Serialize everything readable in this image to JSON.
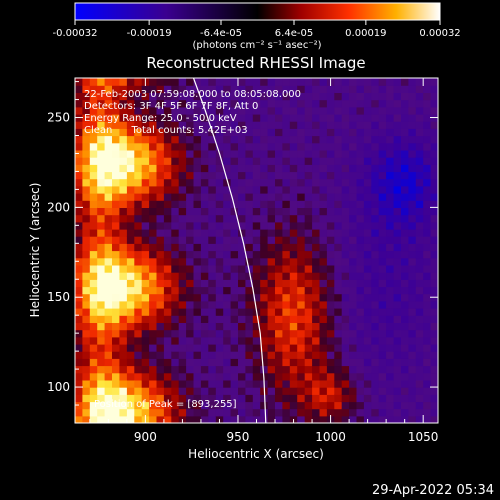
{
  "chart_data": {
    "type": "heatmap",
    "title": "Reconstructed RHESSI Image",
    "xlabel": "Heliocentric X (arcsec)",
    "ylabel": "Heliocentric Y (arcsec)",
    "xlim": [
      862,
      1058
    ],
    "ylim": [
      80,
      272
    ],
    "x_ticks": [
      900,
      950,
      1000,
      1050
    ],
    "y_ticks": [
      100,
      150,
      200,
      250
    ],
    "colorbar": {
      "min": -0.00032,
      "max": 0.00032,
      "tick_values": [
        -0.00032,
        -0.00019,
        -6.4e-05,
        6.4e-05,
        0.00019,
        0.00032
      ],
      "tick_labels": [
        "-0.00032",
        "-0.00019",
        "-6.4e-05",
        "6.4e-05",
        "0.00019",
        "0.00032"
      ],
      "unit_label": "(photons cm⁻² s⁻¹ asec⁻²)"
    },
    "annotations": [
      "22-Feb-2003 07:59:08.000 to 08:05:08.000",
      "Detectors: 3F 4F 5F 6F 7F 8F, Att 0",
      "Energy Range: 25.0 - 50.0 keV",
      "Clean      Total counts: 5.42E+03"
    ],
    "peak_label": "Position of Peak = [893,255]",
    "limb": [
      [
        926,
        272
      ],
      [
        932,
        255
      ],
      [
        940,
        230
      ],
      [
        947,
        205
      ],
      [
        953,
        180
      ],
      [
        958,
        155
      ],
      [
        962,
        130
      ],
      [
        964,
        105
      ],
      [
        965,
        80
      ]
    ]
  },
  "footer": {
    "timestamp": "29-Apr-2022 05:34"
  }
}
